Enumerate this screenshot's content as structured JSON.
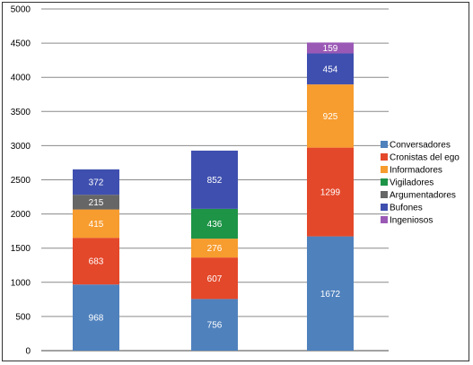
{
  "chart_data": {
    "type": "bar",
    "stacked": true,
    "categories": [
      "",
      "",
      ""
    ],
    "ylim": [
      0,
      5000
    ],
    "yticks": [
      "0",
      "500",
      "1000",
      "1500",
      "2000",
      "2500",
      "3000",
      "3500",
      "4000",
      "4500",
      "5000"
    ],
    "grid": true,
    "legend_position": "right",
    "series": [
      {
        "name": "Conversadores",
        "color": "#4F81BD",
        "values": [
          968,
          756,
          1672
        ]
      },
      {
        "name": "Cronistas del ego",
        "color": "#E4482A",
        "values": [
          683,
          607,
          1299
        ]
      },
      {
        "name": "Informadores",
        "color": "#F79C2E",
        "values": [
          415,
          276,
          925
        ]
      },
      {
        "name": "Vigiladores",
        "color": "#1E9447",
        "values": [
          0,
          436,
          0
        ]
      },
      {
        "name": "Argumentadores",
        "color": "#666666",
        "values": [
          215,
          0,
          0
        ]
      },
      {
        "name": "Bufones",
        "color": "#3F4FAF",
        "values": [
          372,
          852,
          454
        ]
      },
      {
        "name": "Ingeniosos",
        "color": "#9B59B6",
        "values": [
          0,
          0,
          159
        ]
      }
    ]
  }
}
